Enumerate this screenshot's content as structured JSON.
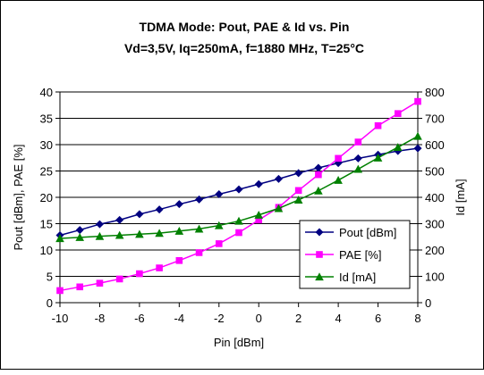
{
  "chart_data": {
    "type": "line",
    "title": "TDMA Mode: Pout, PAE & Id vs. Pin",
    "subtitle": "Vd=3,5V, Iq=250mA, f=1880 MHz, T=25°C",
    "xlabel": "Pin [dBm]",
    "ylabel_left": "Pout [dBm], PAE [%]",
    "ylabel_right": "Id [mA]",
    "xlim": [
      -10,
      8
    ],
    "ylim_left": [
      0,
      40
    ],
    "ylim_right": [
      0,
      800
    ],
    "x_ticks": [
      "-10",
      "-8",
      "-6",
      "-4",
      "-2",
      "0",
      "2",
      "4",
      "6",
      "8"
    ],
    "y_left_ticks": [
      "0",
      "5",
      "10",
      "15",
      "20",
      "25",
      "30",
      "35",
      "40"
    ],
    "y_right_ticks": [
      "0",
      "100",
      "200",
      "300",
      "400",
      "500",
      "600",
      "700",
      "800"
    ],
    "grid": "horizontal",
    "legend_position": "right-middle",
    "x": [
      -10,
      -9,
      -8,
      -7,
      -6,
      -5,
      -4,
      -3,
      -2,
      -1,
      0,
      1,
      2,
      3,
      4,
      5,
      6,
      7,
      8
    ],
    "series": [
      {
        "name": "Pout [dBm]",
        "axis": "left",
        "color": "#000080",
        "marker": "diamond",
        "values": [
          12.8,
          13.8,
          14.9,
          15.7,
          16.8,
          17.7,
          18.7,
          19.6,
          20.6,
          21.5,
          22.5,
          23.5,
          24.6,
          25.6,
          26.5,
          27.4,
          28.1,
          28.8,
          29.3
        ]
      },
      {
        "name": "PAE [%]",
        "axis": "left",
        "color": "#FF00FF",
        "marker": "square",
        "values": [
          2.3,
          3.0,
          3.7,
          4.5,
          5.5,
          6.6,
          8.0,
          9.5,
          11.2,
          13.3,
          15.7,
          18.1,
          21.3,
          24.3,
          27.4,
          30.5,
          33.6,
          35.9,
          38.2
        ]
      },
      {
        "name": "Id [mA]",
        "axis": "right",
        "color": "#008000",
        "marker": "triangle",
        "values": [
          244,
          248,
          252,
          256,
          260,
          264,
          272,
          280,
          293,
          310,
          333,
          358,
          390,
          425,
          465,
          507,
          550,
          590,
          632
        ]
      }
    ]
  }
}
